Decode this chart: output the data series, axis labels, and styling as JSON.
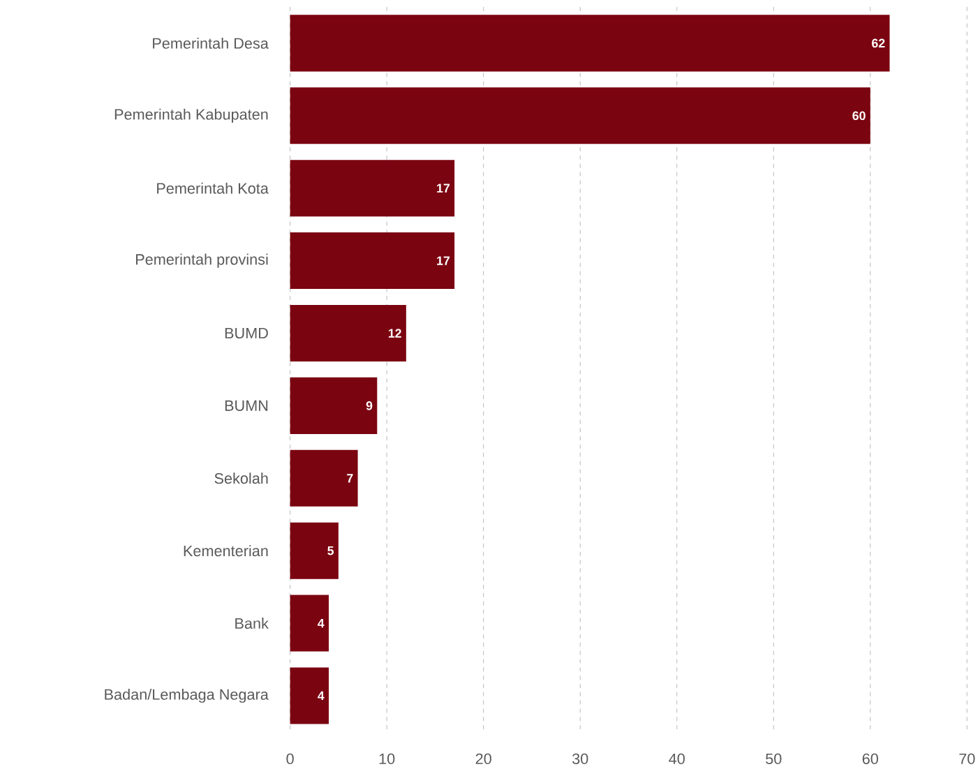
{
  "chart_data": {
    "type": "bar",
    "orientation": "horizontal",
    "categories": [
      "Pemerintah Desa",
      "Pemerintah Kabupaten",
      "Pemerintah Kota",
      "Pemerintah provinsi",
      "BUMD",
      "BUMN",
      "Sekolah",
      "Kementerian",
      "Bank",
      "Badan/Lembaga Negara"
    ],
    "values": [
      62,
      60,
      17,
      17,
      12,
      9,
      7,
      5,
      4,
      4
    ],
    "color": "#7b0411",
    "data_labels": true,
    "grid": "x",
    "xlim": [
      0,
      70
    ],
    "xticks": [
      0,
      10,
      20,
      30,
      40,
      50,
      60,
      70
    ]
  }
}
